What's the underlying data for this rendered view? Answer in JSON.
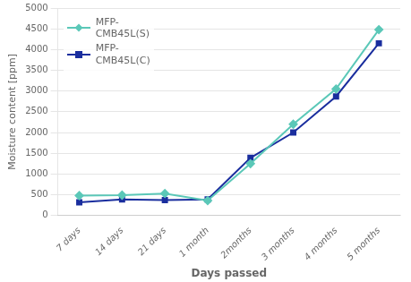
{
  "chart_data": {
    "type": "line",
    "categories": [
      "7 days",
      "14 days",
      "21 days",
      "1 month",
      "2months",
      "3 months",
      "4 months",
      "5 months"
    ],
    "series": [
      {
        "name": "MFP-\nCMB45L(S)",
        "color": "#5BC8B8",
        "marker": "diamond",
        "values": [
          480,
          490,
          530,
          360,
          1250,
          2200,
          3050,
          4480
        ]
      },
      {
        "name": "MFP-\nCMB45L(C)",
        "color": "#1A2E9E",
        "marker": "square",
        "values": [
          320,
          390,
          370,
          390,
          1390,
          2000,
          2870,
          4150
        ]
      }
    ],
    "xlabel": "Days passed",
    "ylabel": "Moisture content [ppm]",
    "ylim": [
      0,
      5000
    ],
    "yticks": [
      0,
      500,
      1000,
      1500,
      2000,
      2500,
      3000,
      3500,
      4000,
      4500,
      5000
    ],
    "grid": true,
    "legend": "upper left"
  }
}
